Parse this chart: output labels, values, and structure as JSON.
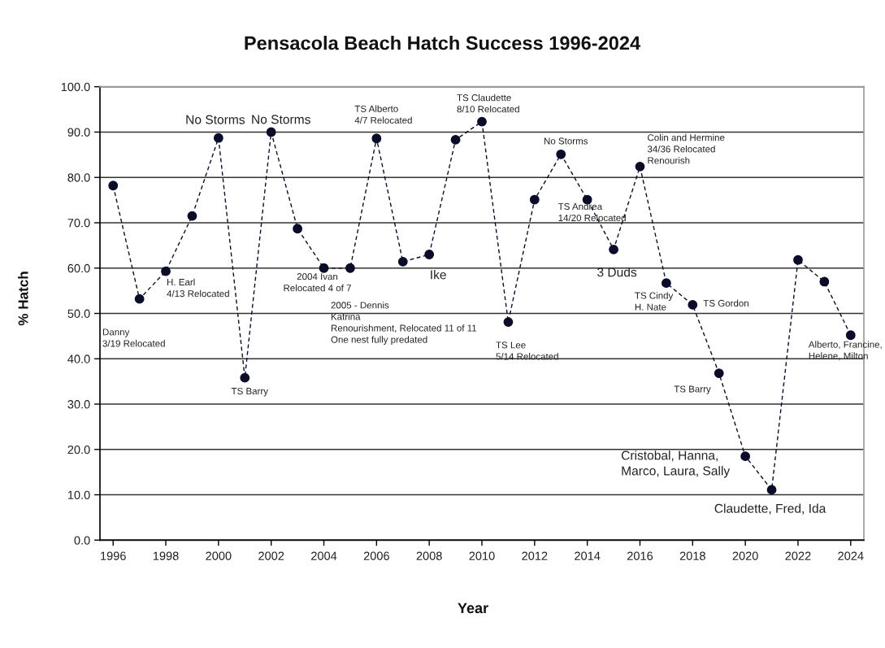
{
  "chart_data": {
    "type": "line",
    "title": "Pensacola Beach Hatch Success 1996-2024",
    "xlabel": "Year",
    "ylabel": "% Hatch",
    "x": [
      1996,
      1997,
      1998,
      1999,
      2000,
      2001,
      2002,
      2003,
      2004,
      2005,
      2006,
      2007,
      2008,
      2009,
      2010,
      2011,
      2012,
      2013,
      2014,
      2015,
      2016,
      2017,
      2018,
      2019,
      2020,
      2021,
      2022,
      2023,
      2024
    ],
    "series": [
      {
        "color": "#0b0c2a",
        "values": [
          78.2,
          53.2,
          59.3,
          71.5,
          88.7,
          35.8,
          90.0,
          68.7,
          60.0,
          60.0,
          88.6,
          61.4,
          63.0,
          88.3,
          92.3,
          48.1,
          75.1,
          85.1,
          75.1,
          64.1,
          82.4,
          56.7,
          51.9,
          36.8,
          18.5,
          11.1,
          61.8,
          57.0,
          45.2
        ]
      }
    ],
    "xlim": [
      1995.5,
      2024.5
    ],
    "xticks": [
      1996,
      1998,
      2000,
      2002,
      2004,
      2006,
      2008,
      2010,
      2012,
      2014,
      2016,
      2018,
      2020,
      2022,
      2024
    ],
    "ylim": [
      0,
      100
    ],
    "yticks": [
      {
        "value": 0,
        "label": "0.0"
      },
      {
        "value": 10,
        "label": "10.0"
      },
      {
        "value": 20,
        "label": "20.0"
      },
      {
        "value": 30,
        "label": "30.0"
      },
      {
        "value": 40,
        "label": "40.0"
      },
      {
        "value": 50,
        "label": "50.0"
      },
      {
        "value": 60,
        "label": "60.0"
      },
      {
        "value": 70,
        "label": "70.0"
      },
      {
        "value": 80,
        "label": "80.0"
      },
      {
        "value": 90,
        "label": "90.0"
      },
      {
        "value": 100,
        "label": "100.0"
      }
    ],
    "grid": "y",
    "marker": "circle",
    "line_style": "dashed",
    "legend": false,
    "annotations": [
      "Danny\n3/19 Relocated",
      {
        "text": "H. Earl\n4/13 Relocated",
        "x": 1998,
        "y": 59.3
      },
      {
        "text": "No Storms",
        "x": 2000,
        "y": 88.7
      },
      {
        "text": "TS Barry",
        "x": 2001,
        "y": 35.8
      },
      {
        "text": "No Storms",
        "x": 2002,
        "y": 90.0
      },
      {
        "text": "2004 Ivan\nRelocated 4 of 7",
        "x": 2004,
        "y": 60.0
      },
      "2005 - Dennis\nKatrina\nRenourishment, Relocated 11 of 11\nOne nest fully predated",
      {
        "text": "TS Alberto\n4/7 Relocated",
        "x": 2006,
        "y": 88.6
      },
      {
        "text": "Ike",
        "x": 2008,
        "y": 63.0
      },
      {
        "text": "TS Claudette\n8/10 Relocated",
        "x": 2010,
        "y": 92.3
      },
      "TS Lee\n5/14 Relocated",
      {
        "text": "No Storms",
        "x": 2013,
        "y": 85.1
      },
      {
        "text": "TS Andrea\n14/20 Relocated",
        "x": 2014,
        "y": 75.1
      },
      {
        "text": "3 Duds",
        "x": 2015,
        "y": 64.1
      },
      {
        "text": "Colin and Hermine\n34/36 Relocated\nRenourish",
        "x": 2016,
        "y": 82.4
      },
      {
        "text": "TS Cindy\nH. Nate",
        "x": 2017,
        "y": 56.7
      },
      {
        "text": "TS Gordon",
        "x": 2018,
        "y": 51.9
      },
      {
        "text": "TS Barry",
        "x": 2019,
        "y": 36.8
      },
      {
        "text": "Cristobal, Hanna,\nMarco, Laura, Sally",
        "x": 2020,
        "y": 18.5
      },
      {
        "text": "Claudette, Fred, Ida",
        "x": 2021,
        "y": 11.1
      },
      {
        "text": "Alberto, Francine,\nHelene, Milton",
        "x": 2024,
        "y": 45.2
      }
    ]
  }
}
